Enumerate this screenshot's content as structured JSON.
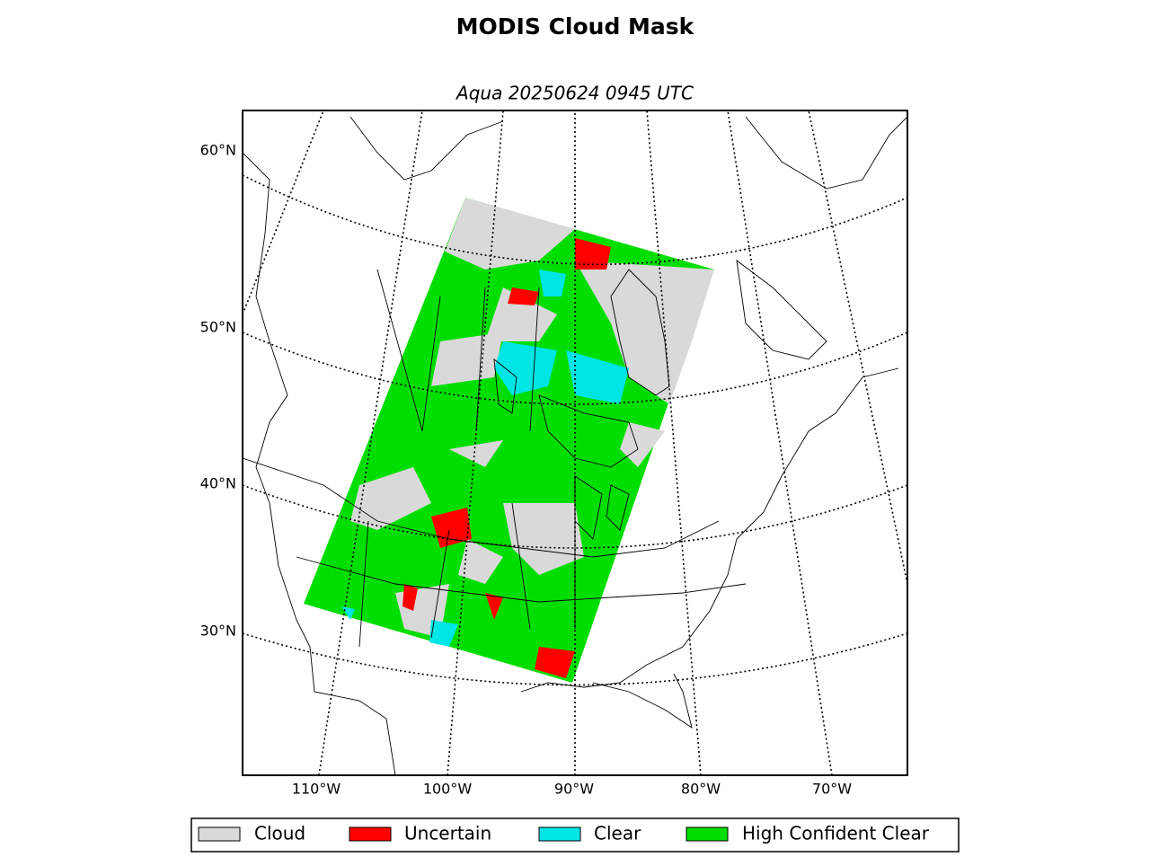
{
  "title": "MODIS Cloud Mask",
  "subtitle": "Aqua 20250624 0945 UTC",
  "lat_labels": [
    "60°N",
    "50°N",
    "40°N",
    "30°N"
  ],
  "lon_labels": [
    "110°W",
    "100°W",
    "90°W",
    "80°W",
    "70°W"
  ],
  "legend": [
    {
      "label": "Cloud",
      "color": "#d9d9d9"
    },
    {
      "label": "Uncertain",
      "color": "#ff0000"
    },
    {
      "label": "Clear",
      "color": "#00e5e5"
    },
    {
      "label": "High Confident Clear",
      "color": "#00dd00"
    }
  ]
}
